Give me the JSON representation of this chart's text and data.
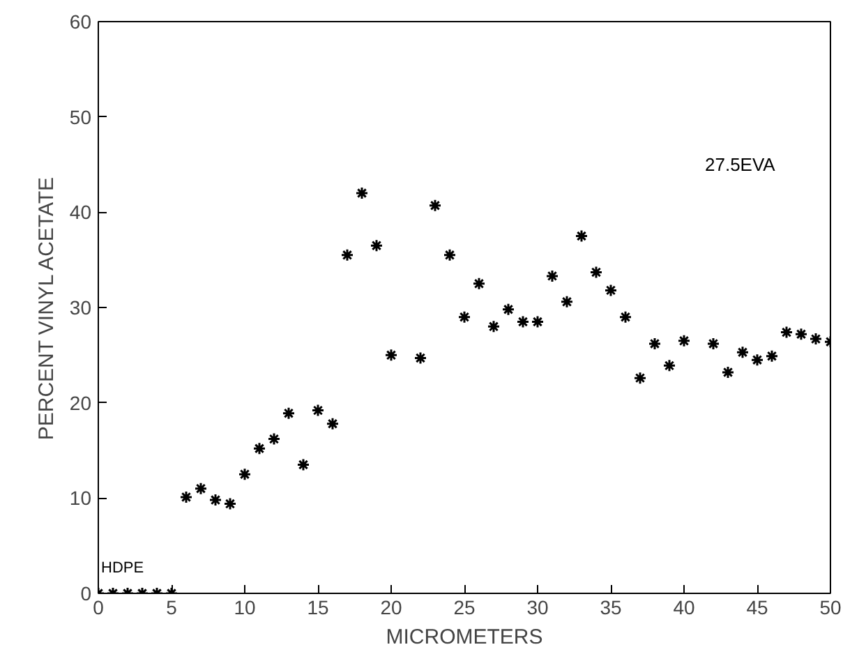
{
  "chart_data": {
    "type": "scatter",
    "xlabel": "MICROMETERS",
    "ylabel": "PERCENT VINYL ACETATE",
    "x": [
      0,
      1,
      2,
      3,
      4,
      5,
      6,
      7,
      8,
      9,
      10,
      11,
      12,
      13,
      14,
      15,
      16,
      17,
      18,
      19,
      20,
      22,
      23,
      24,
      25,
      26,
      27,
      28,
      29,
      30,
      31,
      32,
      33,
      34,
      35,
      36,
      37,
      38,
      39,
      40,
      42,
      43,
      44,
      45,
      46,
      47,
      48,
      49,
      50
    ],
    "series": [
      {
        "color": "#000000",
        "values": [
          0,
          0,
          0,
          0,
          0,
          0,
          10.1,
          11,
          9.8,
          9.4,
          12.5,
          15.2,
          16.2,
          18.9,
          13.5,
          19.2,
          17.8,
          35.5,
          42,
          36.5,
          25,
          24.7,
          40.7,
          35.5,
          29,
          32.5,
          28,
          29.8,
          28.5,
          28.5,
          33.3,
          30.6,
          37.5,
          33.7,
          31.8,
          29,
          22.6,
          26.2,
          23.9,
          26.5,
          26.2,
          23.2,
          25.3,
          24.5,
          24.9,
          27.4,
          27.2,
          26.7,
          26.4
        ]
      }
    ],
    "xlim": [
      0,
      50
    ],
    "ylim": [
      0,
      60
    ],
    "xticks": [
      0,
      5,
      10,
      15,
      20,
      25,
      30,
      35,
      40,
      45,
      50
    ],
    "yticks": [
      0,
      10,
      20,
      30,
      40,
      50,
      60
    ],
    "annotations": [
      "HDPE",
      "27.5EVA"
    ],
    "grid": false,
    "marker": "cross"
  }
}
